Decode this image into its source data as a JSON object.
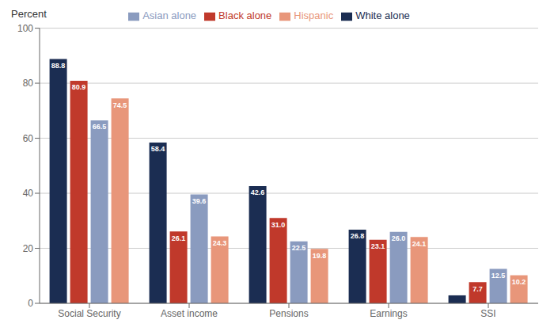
{
  "chart_data": {
    "type": "bar",
    "ylabel": "Percent",
    "categories": [
      "Social Security",
      "Asset income",
      "Pensions",
      "Earnings",
      "SSI"
    ],
    "series": [
      {
        "name": "White alone",
        "color": "#1b2d52",
        "values": [
          88.8,
          58.4,
          42.6,
          26.8,
          2.9
        ],
        "value_labels": [
          "88.8",
          "58.4",
          "42.6",
          "26.8",
          null
        ]
      },
      {
        "name": "Black alone",
        "color": "#c0392b",
        "values": [
          80.9,
          26.1,
          31.0,
          23.1,
          7.7
        ],
        "value_labels": [
          "80.9",
          "26.1",
          "31.0",
          "23.1",
          "7.7"
        ]
      },
      {
        "name": "Asian alone",
        "color": "#8a9bbf",
        "values": [
          66.5,
          39.6,
          22.5,
          26.0,
          12.5
        ],
        "value_labels": [
          "66.5",
          "39.6",
          "22.5",
          "26.0",
          "12.5"
        ]
      },
      {
        "name": "Hispanic",
        "color": "#e8967a",
        "values": [
          74.5,
          24.3,
          19.8,
          24.1,
          10.2
        ],
        "value_labels": [
          "74.5",
          "24.3",
          "19.8",
          "24.1",
          "10.2"
        ]
      }
    ],
    "ylim": [
      0,
      100
    ],
    "yticks": [
      0,
      20,
      40,
      60,
      80,
      100
    ],
    "grid": true,
    "legend": "top",
    "data_labels": true
  }
}
